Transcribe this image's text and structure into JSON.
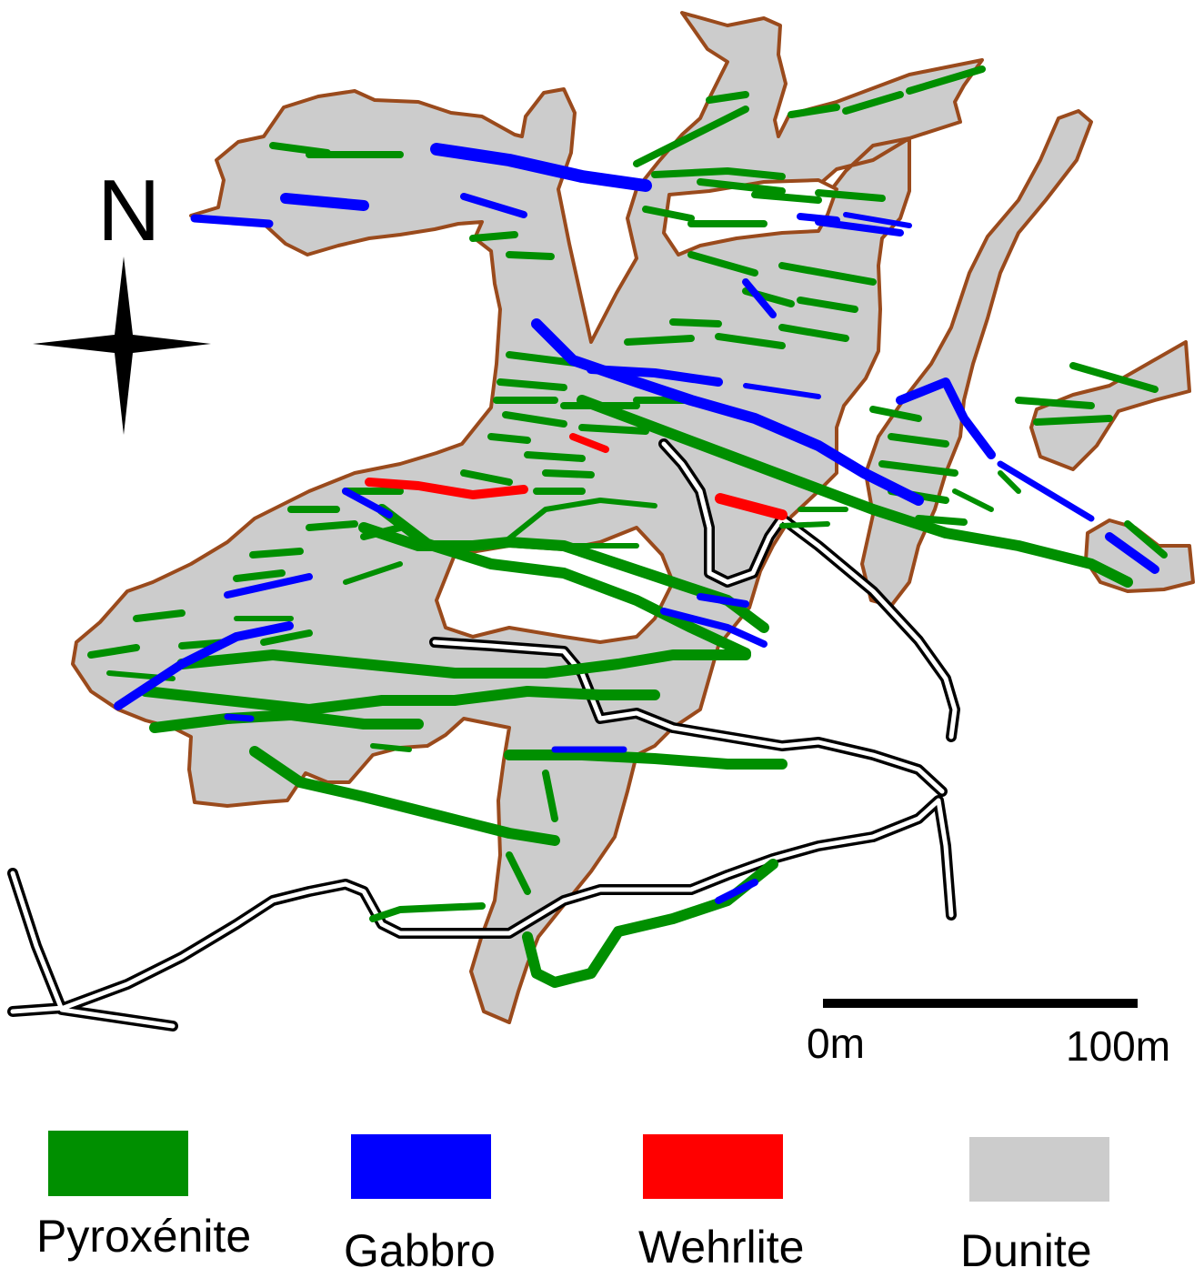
{
  "north_label": "N",
  "scale": {
    "start_label": "0m",
    "end_label": "100m"
  },
  "legend": [
    {
      "label": "Pyroxénite",
      "color": "#008f00"
    },
    {
      "label": "Gabbro",
      "color": "#0000ff"
    },
    {
      "label": "Wehrlite",
      "color": "#ff0000"
    },
    {
      "label": "Dunite",
      "color": "#cccccc"
    }
  ],
  "colors": {
    "dunite_outline": "#9a4a1c",
    "road": "#000000"
  }
}
